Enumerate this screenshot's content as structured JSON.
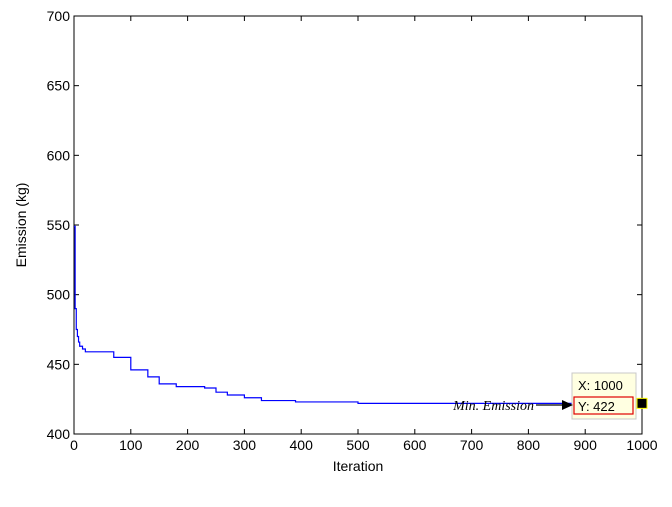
{
  "chart_data": {
    "type": "line",
    "xlabel": "Iteration",
    "ylabel": "Emission (kg)",
    "xlim": [
      0,
      1000
    ],
    "ylim": [
      400,
      700
    ],
    "xticks": [
      0,
      100,
      200,
      300,
      400,
      500,
      600,
      700,
      800,
      900,
      1000
    ],
    "yticks": [
      400,
      450,
      500,
      550,
      600,
      650,
      700
    ],
    "grid": false,
    "series": [
      {
        "color": "#0000ff",
        "x": [
          0,
          2,
          4,
          6,
          8,
          10,
          15,
          20,
          25,
          70,
          100,
          130,
          150,
          180,
          230,
          250,
          270,
          300,
          330,
          390,
          500,
          1000
        ],
        "y": [
          549,
          490,
          475,
          470,
          466,
          463,
          461,
          459,
          459,
          455,
          446,
          441,
          436,
          434,
          433,
          430,
          428,
          426,
          424,
          423,
          422,
          422
        ]
      }
    ],
    "annotations": [
      {
        "text": "Min. Emission",
        "datatip": {
          "x_label": "X: 1000",
          "y_label": "Y: 422"
        },
        "point": {
          "x": 1000,
          "y": 422
        }
      }
    ]
  }
}
